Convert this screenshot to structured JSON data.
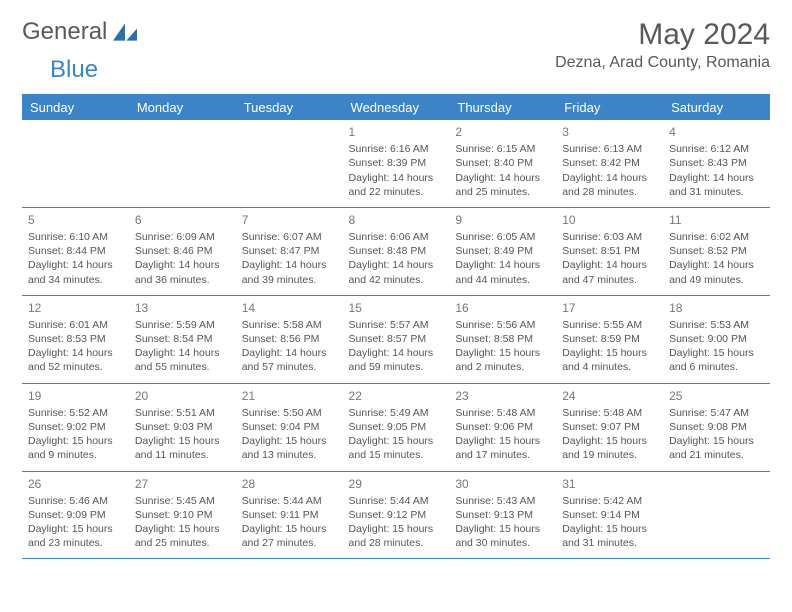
{
  "logo": {
    "part1": "General",
    "part2": "Blue"
  },
  "title": "May 2024",
  "location": "Dezna, Arad County, Romania",
  "colors": {
    "accent": "#3d84c6",
    "text": "#595959",
    "cell_text": "#555555",
    "daynum": "#777777",
    "background": "#ffffff"
  },
  "days": [
    "Sunday",
    "Monday",
    "Tuesday",
    "Wednesday",
    "Thursday",
    "Friday",
    "Saturday"
  ],
  "weeks": [
    [
      null,
      null,
      null,
      {
        "n": "1",
        "sr": "Sunrise: 6:16 AM",
        "ss": "Sunset: 8:39 PM",
        "d1": "Daylight: 14 hours",
        "d2": "and 22 minutes."
      },
      {
        "n": "2",
        "sr": "Sunrise: 6:15 AM",
        "ss": "Sunset: 8:40 PM",
        "d1": "Daylight: 14 hours",
        "d2": "and 25 minutes."
      },
      {
        "n": "3",
        "sr": "Sunrise: 6:13 AM",
        "ss": "Sunset: 8:42 PM",
        "d1": "Daylight: 14 hours",
        "d2": "and 28 minutes."
      },
      {
        "n": "4",
        "sr": "Sunrise: 6:12 AM",
        "ss": "Sunset: 8:43 PM",
        "d1": "Daylight: 14 hours",
        "d2": "and 31 minutes."
      }
    ],
    [
      {
        "n": "5",
        "sr": "Sunrise: 6:10 AM",
        "ss": "Sunset: 8:44 PM",
        "d1": "Daylight: 14 hours",
        "d2": "and 34 minutes."
      },
      {
        "n": "6",
        "sr": "Sunrise: 6:09 AM",
        "ss": "Sunset: 8:46 PM",
        "d1": "Daylight: 14 hours",
        "d2": "and 36 minutes."
      },
      {
        "n": "7",
        "sr": "Sunrise: 6:07 AM",
        "ss": "Sunset: 8:47 PM",
        "d1": "Daylight: 14 hours",
        "d2": "and 39 minutes."
      },
      {
        "n": "8",
        "sr": "Sunrise: 6:06 AM",
        "ss": "Sunset: 8:48 PM",
        "d1": "Daylight: 14 hours",
        "d2": "and 42 minutes."
      },
      {
        "n": "9",
        "sr": "Sunrise: 6:05 AM",
        "ss": "Sunset: 8:49 PM",
        "d1": "Daylight: 14 hours",
        "d2": "and 44 minutes."
      },
      {
        "n": "10",
        "sr": "Sunrise: 6:03 AM",
        "ss": "Sunset: 8:51 PM",
        "d1": "Daylight: 14 hours",
        "d2": "and 47 minutes."
      },
      {
        "n": "11",
        "sr": "Sunrise: 6:02 AM",
        "ss": "Sunset: 8:52 PM",
        "d1": "Daylight: 14 hours",
        "d2": "and 49 minutes."
      }
    ],
    [
      {
        "n": "12",
        "sr": "Sunrise: 6:01 AM",
        "ss": "Sunset: 8:53 PM",
        "d1": "Daylight: 14 hours",
        "d2": "and 52 minutes."
      },
      {
        "n": "13",
        "sr": "Sunrise: 5:59 AM",
        "ss": "Sunset: 8:54 PM",
        "d1": "Daylight: 14 hours",
        "d2": "and 55 minutes."
      },
      {
        "n": "14",
        "sr": "Sunrise: 5:58 AM",
        "ss": "Sunset: 8:56 PM",
        "d1": "Daylight: 14 hours",
        "d2": "and 57 minutes."
      },
      {
        "n": "15",
        "sr": "Sunrise: 5:57 AM",
        "ss": "Sunset: 8:57 PM",
        "d1": "Daylight: 14 hours",
        "d2": "and 59 minutes."
      },
      {
        "n": "16",
        "sr": "Sunrise: 5:56 AM",
        "ss": "Sunset: 8:58 PM",
        "d1": "Daylight: 15 hours",
        "d2": "and 2 minutes."
      },
      {
        "n": "17",
        "sr": "Sunrise: 5:55 AM",
        "ss": "Sunset: 8:59 PM",
        "d1": "Daylight: 15 hours",
        "d2": "and 4 minutes."
      },
      {
        "n": "18",
        "sr": "Sunrise: 5:53 AM",
        "ss": "Sunset: 9:00 PM",
        "d1": "Daylight: 15 hours",
        "d2": "and 6 minutes."
      }
    ],
    [
      {
        "n": "19",
        "sr": "Sunrise: 5:52 AM",
        "ss": "Sunset: 9:02 PM",
        "d1": "Daylight: 15 hours",
        "d2": "and 9 minutes."
      },
      {
        "n": "20",
        "sr": "Sunrise: 5:51 AM",
        "ss": "Sunset: 9:03 PM",
        "d1": "Daylight: 15 hours",
        "d2": "and 11 minutes."
      },
      {
        "n": "21",
        "sr": "Sunrise: 5:50 AM",
        "ss": "Sunset: 9:04 PM",
        "d1": "Daylight: 15 hours",
        "d2": "and 13 minutes."
      },
      {
        "n": "22",
        "sr": "Sunrise: 5:49 AM",
        "ss": "Sunset: 9:05 PM",
        "d1": "Daylight: 15 hours",
        "d2": "and 15 minutes."
      },
      {
        "n": "23",
        "sr": "Sunrise: 5:48 AM",
        "ss": "Sunset: 9:06 PM",
        "d1": "Daylight: 15 hours",
        "d2": "and 17 minutes."
      },
      {
        "n": "24",
        "sr": "Sunrise: 5:48 AM",
        "ss": "Sunset: 9:07 PM",
        "d1": "Daylight: 15 hours",
        "d2": "and 19 minutes."
      },
      {
        "n": "25",
        "sr": "Sunrise: 5:47 AM",
        "ss": "Sunset: 9:08 PM",
        "d1": "Daylight: 15 hours",
        "d2": "and 21 minutes."
      }
    ],
    [
      {
        "n": "26",
        "sr": "Sunrise: 5:46 AM",
        "ss": "Sunset: 9:09 PM",
        "d1": "Daylight: 15 hours",
        "d2": "and 23 minutes."
      },
      {
        "n": "27",
        "sr": "Sunrise: 5:45 AM",
        "ss": "Sunset: 9:10 PM",
        "d1": "Daylight: 15 hours",
        "d2": "and 25 minutes."
      },
      {
        "n": "28",
        "sr": "Sunrise: 5:44 AM",
        "ss": "Sunset: 9:11 PM",
        "d1": "Daylight: 15 hours",
        "d2": "and 27 minutes."
      },
      {
        "n": "29",
        "sr": "Sunrise: 5:44 AM",
        "ss": "Sunset: 9:12 PM",
        "d1": "Daylight: 15 hours",
        "d2": "and 28 minutes."
      },
      {
        "n": "30",
        "sr": "Sunrise: 5:43 AM",
        "ss": "Sunset: 9:13 PM",
        "d1": "Daylight: 15 hours",
        "d2": "and 30 minutes."
      },
      {
        "n": "31",
        "sr": "Sunrise: 5:42 AM",
        "ss": "Sunset: 9:14 PM",
        "d1": "Daylight: 15 hours",
        "d2": "and 31 minutes."
      },
      null
    ]
  ]
}
